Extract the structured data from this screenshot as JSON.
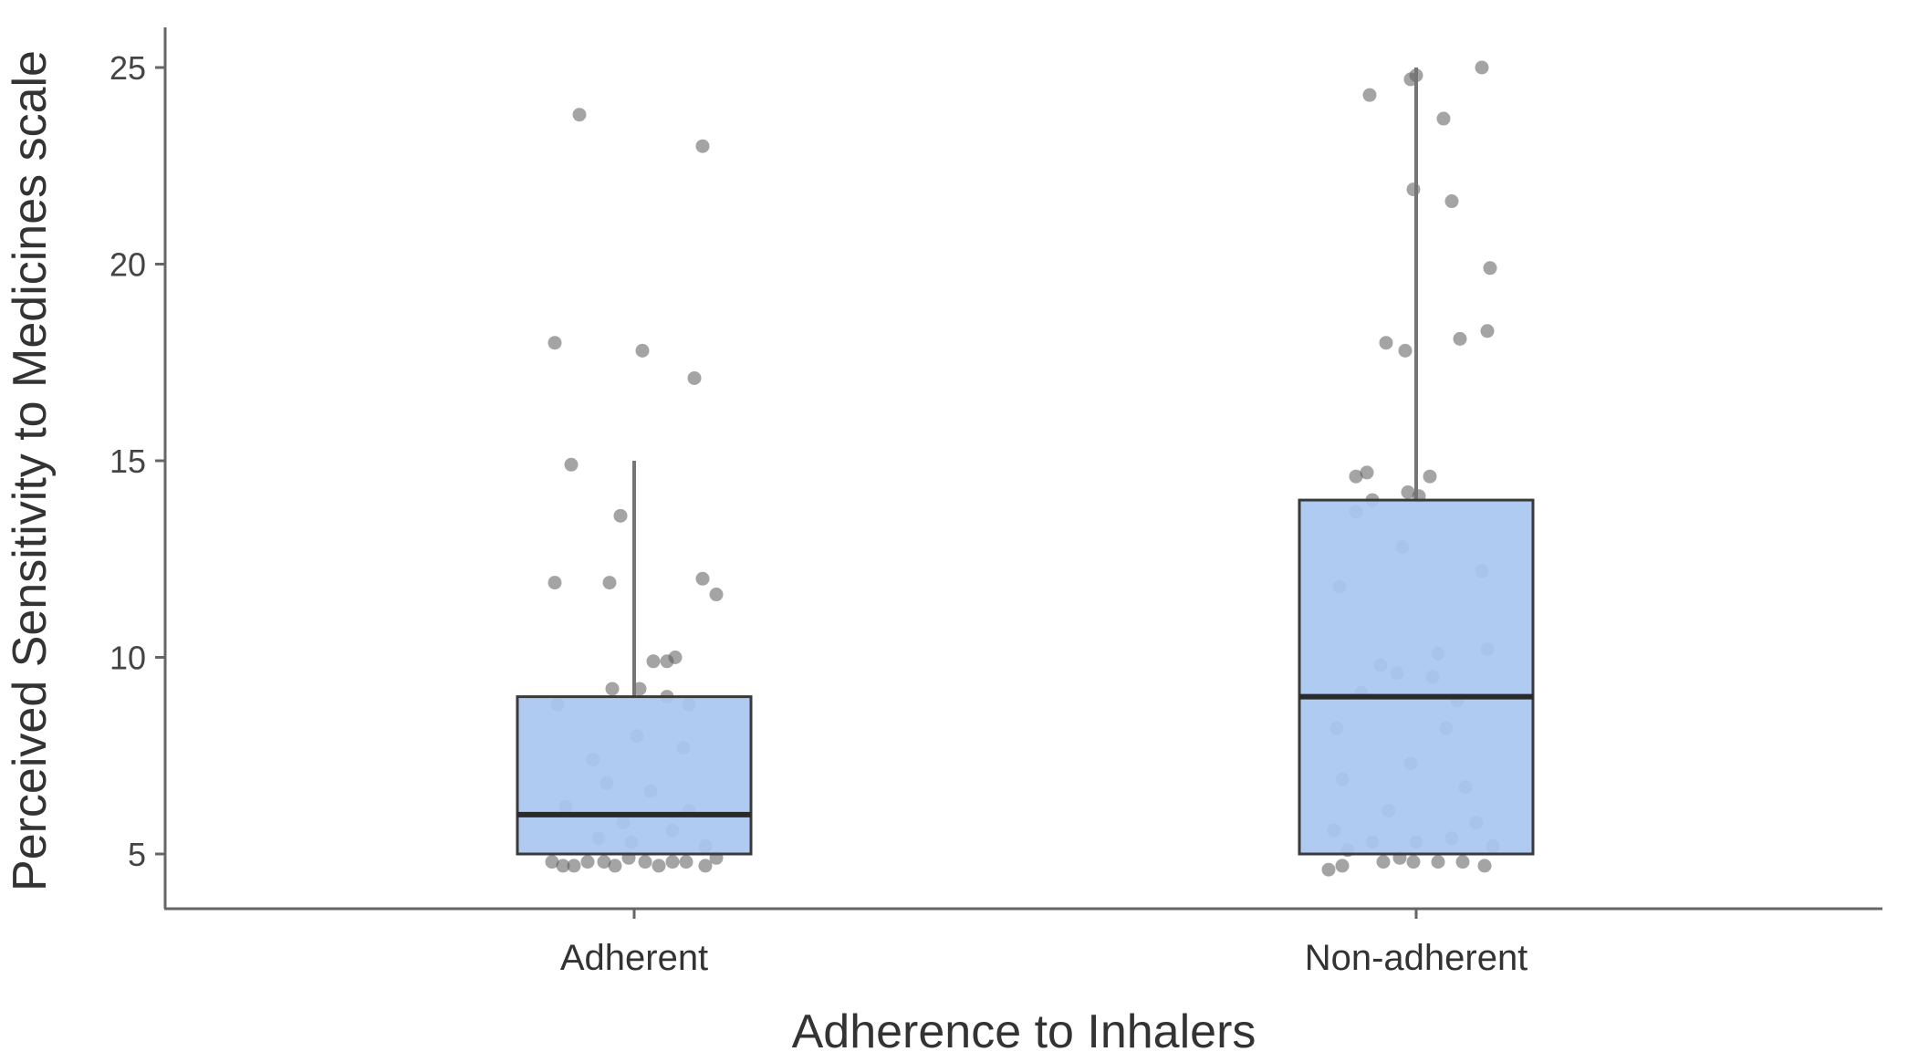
{
  "chart_data": {
    "type": "box",
    "title": "",
    "xlabel": "Adherence to Inhalers",
    "ylabel": "Perceived Sensitivity to Medicines scale",
    "ylim": [
      3.6,
      26
    ],
    "yticks": [
      5,
      10,
      15,
      20,
      25
    ],
    "grid": false,
    "legend": "none",
    "colors": {
      "box_fill": "#a9c7f0",
      "box_stroke": "#3a3a3a",
      "point": "#5a5a5a",
      "axis": "#666666"
    },
    "categories": [
      "Adherent",
      "Non-adherent"
    ],
    "boxes": [
      {
        "category": "Adherent",
        "min": 5,
        "q1": 5,
        "median": 6,
        "q3": 9,
        "max": 15
      },
      {
        "category": "Non-adherent",
        "min": 5,
        "q1": 5,
        "median": 9,
        "q3": 14,
        "max": 25
      }
    ],
    "points": [
      {
        "category": "Adherent",
        "points": [
          {
            "jitter": -0.2,
            "y": 23.8
          },
          {
            "jitter": 0.25,
            "y": 23.0
          },
          {
            "jitter": -0.29,
            "y": 18.0
          },
          {
            "jitter": 0.03,
            "y": 17.8
          },
          {
            "jitter": 0.22,
            "y": 17.1
          },
          {
            "jitter": -0.23,
            "y": 14.9
          },
          {
            "jitter": -0.05,
            "y": 13.6
          },
          {
            "jitter": -0.29,
            "y": 11.9
          },
          {
            "jitter": -0.09,
            "y": 11.9
          },
          {
            "jitter": 0.25,
            "y": 12.0
          },
          {
            "jitter": 0.3,
            "y": 11.6
          },
          {
            "jitter": 0.07,
            "y": 9.9
          },
          {
            "jitter": 0.15,
            "y": 10.0
          },
          {
            "jitter": 0.12,
            "y": 9.9
          },
          {
            "jitter": -0.08,
            "y": 9.2
          },
          {
            "jitter": 0.02,
            "y": 9.2
          },
          {
            "jitter": 0.12,
            "y": 9.0
          },
          {
            "jitter": -0.28,
            "y": 8.8
          },
          {
            "jitter": 0.2,
            "y": 8.8
          },
          {
            "jitter": 0.01,
            "y": 8.0
          },
          {
            "jitter": 0.18,
            "y": 7.7
          },
          {
            "jitter": -0.15,
            "y": 7.4
          },
          {
            "jitter": -0.1,
            "y": 6.8
          },
          {
            "jitter": 0.06,
            "y": 6.6
          },
          {
            "jitter": -0.25,
            "y": 6.2
          },
          {
            "jitter": 0.2,
            "y": 6.1
          },
          {
            "jitter": -0.04,
            "y": 5.8
          },
          {
            "jitter": 0.14,
            "y": 5.6
          },
          {
            "jitter": -0.13,
            "y": 5.4
          },
          {
            "jitter": 0.26,
            "y": 5.2
          },
          {
            "jitter": -0.01,
            "y": 5.3
          },
          {
            "jitter": -0.3,
            "y": 4.8
          },
          {
            "jitter": -0.26,
            "y": 4.7
          },
          {
            "jitter": -0.22,
            "y": 4.7
          },
          {
            "jitter": -0.17,
            "y": 4.8
          },
          {
            "jitter": -0.11,
            "y": 4.8
          },
          {
            "jitter": -0.07,
            "y": 4.7
          },
          {
            "jitter": -0.02,
            "y": 4.9
          },
          {
            "jitter": 0.04,
            "y": 4.8
          },
          {
            "jitter": 0.09,
            "y": 4.7
          },
          {
            "jitter": 0.14,
            "y": 4.8
          },
          {
            "jitter": 0.19,
            "y": 4.8
          },
          {
            "jitter": 0.26,
            "y": 4.7
          },
          {
            "jitter": 0.3,
            "y": 4.9
          }
        ]
      },
      {
        "category": "Non-adherent",
        "points": [
          {
            "jitter": 0.24,
            "y": 25.0
          },
          {
            "jitter": 0.0,
            "y": 24.8
          },
          {
            "jitter": -0.02,
            "y": 24.7
          },
          {
            "jitter": -0.17,
            "y": 24.3
          },
          {
            "jitter": 0.1,
            "y": 23.7
          },
          {
            "jitter": -0.01,
            "y": 21.9
          },
          {
            "jitter": 0.13,
            "y": 21.6
          },
          {
            "jitter": 0.27,
            "y": 19.9
          },
          {
            "jitter": 0.26,
            "y": 18.3
          },
          {
            "jitter": 0.16,
            "y": 18.1
          },
          {
            "jitter": -0.11,
            "y": 18.0
          },
          {
            "jitter": -0.04,
            "y": 17.8
          },
          {
            "jitter": -0.22,
            "y": 14.6
          },
          {
            "jitter": -0.18,
            "y": 14.7
          },
          {
            "jitter": 0.05,
            "y": 14.6
          },
          {
            "jitter": -0.03,
            "y": 14.2
          },
          {
            "jitter": 0.01,
            "y": 14.1
          },
          {
            "jitter": -0.16,
            "y": 14.0
          },
          {
            "jitter": -0.22,
            "y": 13.7
          },
          {
            "jitter": -0.05,
            "y": 12.8
          },
          {
            "jitter": 0.24,
            "y": 12.2
          },
          {
            "jitter": -0.28,
            "y": 11.8
          },
          {
            "jitter": 0.08,
            "y": 10.1
          },
          {
            "jitter": 0.26,
            "y": 10.2
          },
          {
            "jitter": -0.13,
            "y": 9.8
          },
          {
            "jitter": -0.07,
            "y": 9.6
          },
          {
            "jitter": 0.06,
            "y": 9.5
          },
          {
            "jitter": -0.2,
            "y": 9.1
          },
          {
            "jitter": 0.15,
            "y": 8.9
          },
          {
            "jitter": -0.29,
            "y": 8.2
          },
          {
            "jitter": 0.11,
            "y": 8.2
          },
          {
            "jitter": -0.02,
            "y": 7.3
          },
          {
            "jitter": -0.27,
            "y": 6.9
          },
          {
            "jitter": 0.18,
            "y": 6.7
          },
          {
            "jitter": -0.1,
            "y": 6.1
          },
          {
            "jitter": 0.22,
            "y": 5.8
          },
          {
            "jitter": -0.3,
            "y": 5.6
          },
          {
            "jitter": 0.13,
            "y": 5.4
          },
          {
            "jitter": -0.16,
            "y": 5.3
          },
          {
            "jitter": 0.0,
            "y": 5.3
          },
          {
            "jitter": 0.28,
            "y": 5.2
          },
          {
            "jitter": -0.25,
            "y": 5.1
          },
          {
            "jitter": -0.32,
            "y": 4.6
          },
          {
            "jitter": -0.27,
            "y": 4.7
          },
          {
            "jitter": -0.12,
            "y": 4.8
          },
          {
            "jitter": -0.06,
            "y": 4.9
          },
          {
            "jitter": -0.01,
            "y": 4.8
          },
          {
            "jitter": 0.08,
            "y": 4.8
          },
          {
            "jitter": 0.17,
            "y": 4.8
          },
          {
            "jitter": 0.25,
            "y": 4.7
          }
        ]
      }
    ]
  }
}
